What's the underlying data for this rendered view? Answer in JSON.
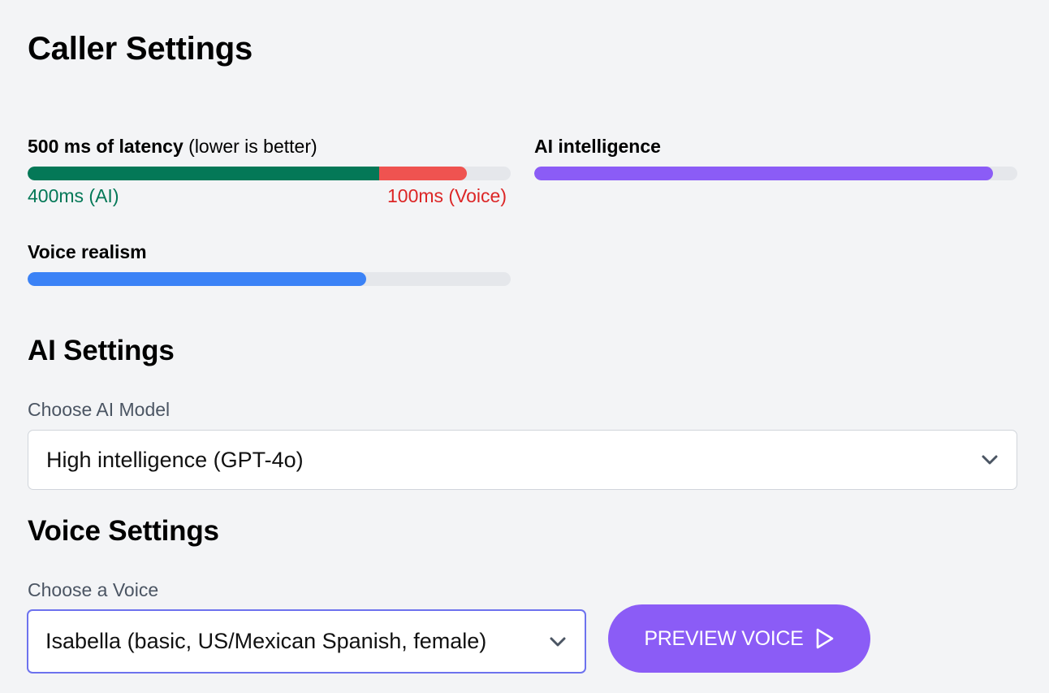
{
  "page": {
    "title": "Caller Settings"
  },
  "metrics": {
    "latency": {
      "label_bold": "500 ms of latency",
      "label_rest": "(lower is better)",
      "ai_label": "400ms (AI)",
      "voice_label": "100ms (Voice)",
      "ai_fraction": 0.728,
      "voice_fraction": 0.182,
      "ai_color": "#047857",
      "voice_color": "#ef5350",
      "ai_text_color": "#047857",
      "voice_text_color": "#dc2626"
    },
    "intelligence": {
      "label": "AI intelligence",
      "fraction": 0.95,
      "color": "#8b5cf6"
    },
    "voice_realism": {
      "label": "Voice realism",
      "fraction": 0.7,
      "color": "#3b82f6"
    }
  },
  "ai_settings": {
    "title": "AI Settings",
    "model_label": "Choose AI Model",
    "model_value": "High intelligence (GPT-4o)"
  },
  "voice_settings": {
    "title": "Voice Settings",
    "voice_label": "Choose a Voice",
    "voice_value": "Isabella (basic, US/Mexican Spanish, female)",
    "preview_button": "PREVIEW VOICE",
    "preview_icon": "play-outline-icon"
  },
  "colors": {
    "background": "#f3f4f6",
    "accent_purple": "#8b5cf6",
    "focus_ring": "#6d72ee",
    "track": "#e5e7eb"
  }
}
